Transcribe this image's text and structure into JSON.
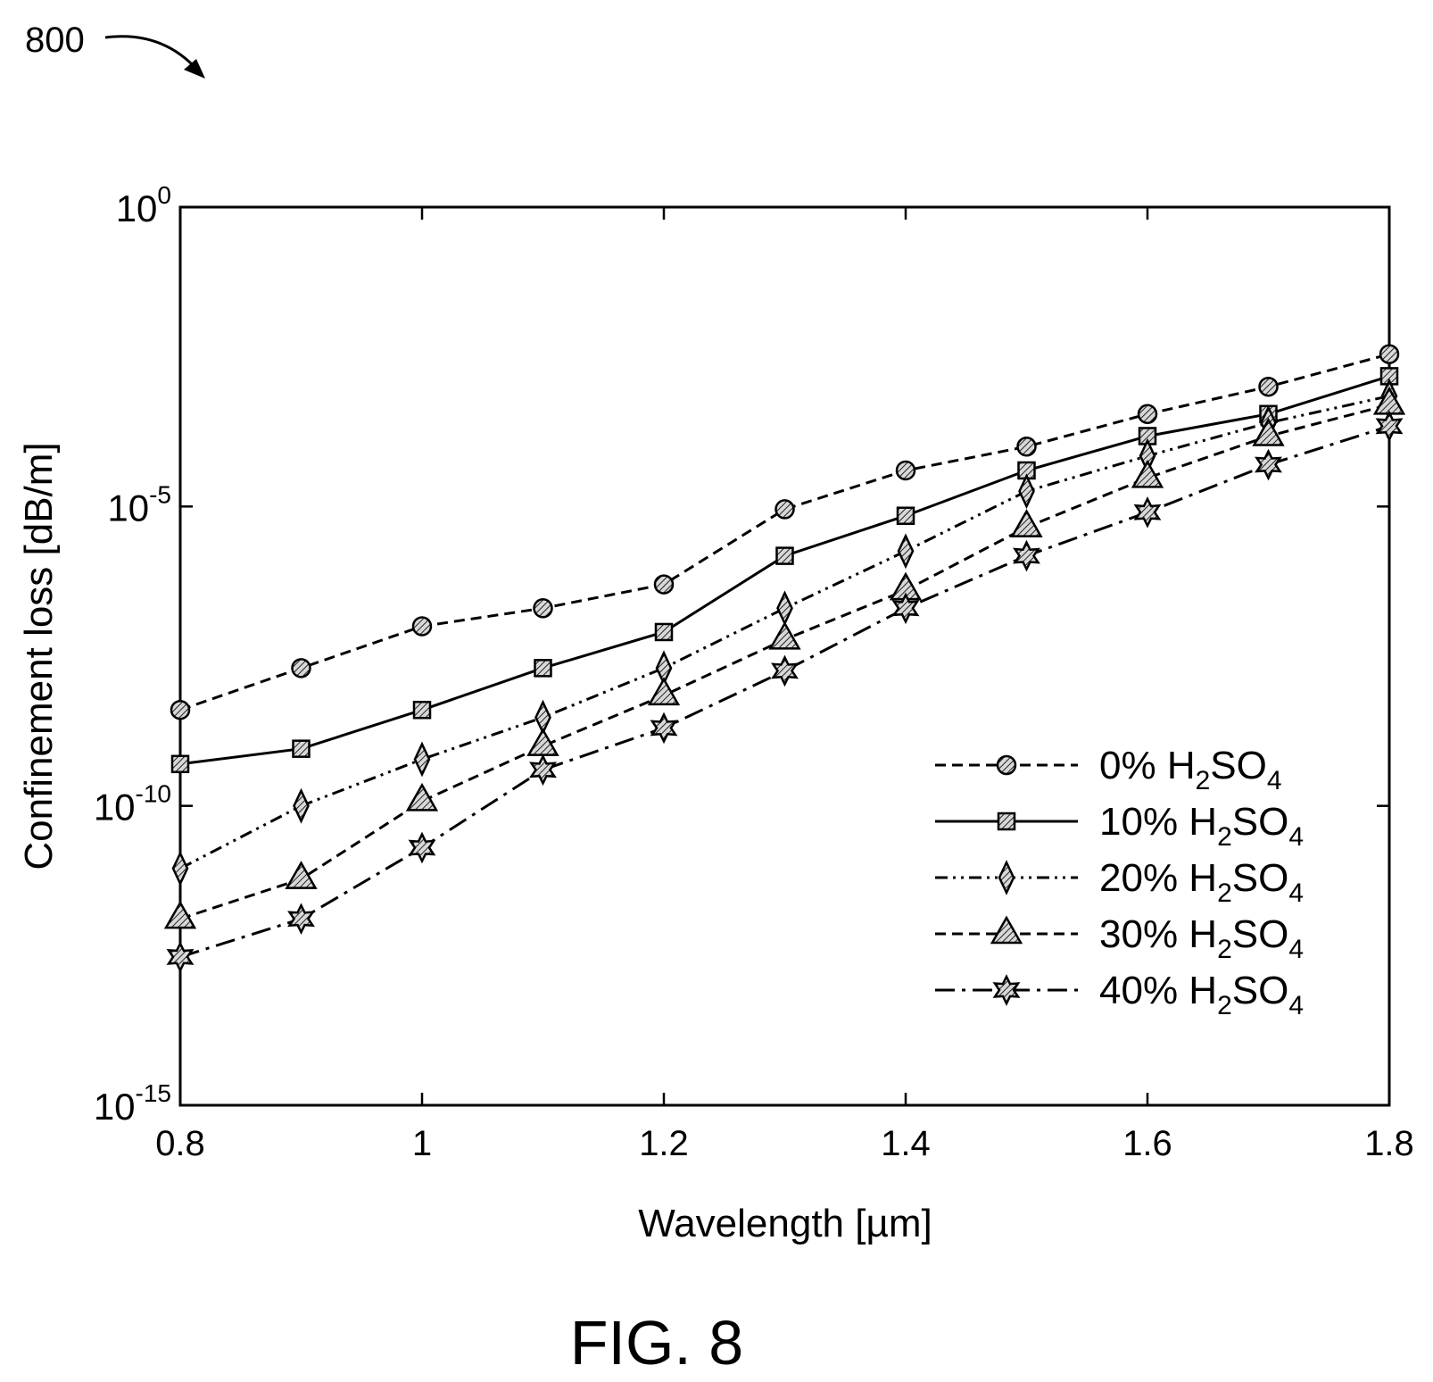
{
  "figure": {
    "ref_number": "800",
    "caption": "FIG. 8"
  },
  "chart_data": {
    "type": "line",
    "xlabel": "Wavelength [µm]",
    "ylabel": "Confinement loss [dB/m]",
    "xlim": [
      0.8,
      1.8
    ],
    "ylim": [
      1e-15,
      1
    ],
    "y_scale": "log",
    "grid": false,
    "legend_position": "bottom-right",
    "x_ticks": [
      "0.8",
      "1",
      "1.2",
      "1.4",
      "1.6",
      "1.8"
    ],
    "y_ticks": [
      {
        "base": "10",
        "exp": "0"
      },
      {
        "base": "10",
        "exp": "-5"
      },
      {
        "base": "10",
        "exp": "-10"
      },
      {
        "base": "10",
        "exp": "-15"
      }
    ],
    "x": [
      0.8,
      0.9,
      1.0,
      1.1,
      1.2,
      1.3,
      1.4,
      1.5,
      1.6,
      1.7,
      1.8
    ],
    "series": [
      {
        "name": "0% H2SO4",
        "legend_parts": {
          "pre": "0% H",
          "sub1": "2",
          "mid": "SO",
          "sub2": "4"
        },
        "marker": "circle",
        "dash": "dashed",
        "values": [
          4e-09,
          2e-08,
          1e-07,
          2e-07,
          5e-07,
          9e-06,
          4e-05,
          0.0001,
          0.00035,
          0.001,
          0.0035
        ]
      },
      {
        "name": "10% H2SO4",
        "legend_parts": {
          "pre": "10% H",
          "sub1": "2",
          "mid": "SO",
          "sub2": "4"
        },
        "marker": "square",
        "dash": "solid",
        "values": [
          5e-10,
          9e-10,
          4e-09,
          2e-08,
          8e-08,
          1.5e-06,
          7e-06,
          4e-05,
          0.00015,
          0.00035,
          0.0015
        ]
      },
      {
        "name": "20% H2SO4",
        "legend_parts": {
          "pre": "20% H",
          "sub1": "2",
          "mid": "SO",
          "sub2": "4"
        },
        "marker": "diamond",
        "dash": "dash-dot-dot",
        "values": [
          9e-12,
          1e-10,
          6e-10,
          3e-09,
          2e-08,
          2e-07,
          1.8e-06,
          1.8e-05,
          7e-05,
          0.00025,
          0.0007
        ]
      },
      {
        "name": "30% H2SO4",
        "legend_parts": {
          "pre": "30% H",
          "sub1": "2",
          "mid": "SO",
          "sub2": "4"
        },
        "marker": "triangle",
        "dash": "dashed",
        "values": [
          1.3e-12,
          6e-12,
          1.2e-10,
          1e-09,
          7e-09,
          6e-08,
          4e-07,
          4.5e-06,
          3e-05,
          0.00015,
          0.0005
        ]
      },
      {
        "name": "40% H2SO4",
        "legend_parts": {
          "pre": "40% H",
          "sub1": "2",
          "mid": "SO",
          "sub2": "4"
        },
        "marker": "star",
        "dash": "dash-dot",
        "values": [
          3e-13,
          1.3e-12,
          2e-11,
          4e-10,
          2e-09,
          1.8e-08,
          2e-07,
          1.5e-06,
          8e-06,
          5e-05,
          0.00022
        ]
      }
    ]
  }
}
